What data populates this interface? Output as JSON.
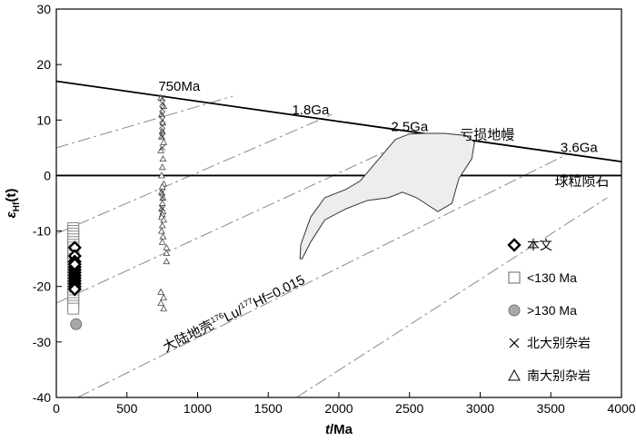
{
  "chart_data": {
    "type": "scatter",
    "xlabel": "t/Ma",
    "ylabel": "εHf(t)",
    "xlim": [
      0,
      4000
    ],
    "ylim": [
      -40,
      30
    ],
    "x_ticks": [
      0,
      500,
      1000,
      1500,
      2000,
      2500,
      3000,
      3500,
      4000
    ],
    "y_ticks": [
      -40,
      -30,
      -20,
      -10,
      0,
      10,
      20,
      30
    ],
    "grid": false,
    "legend_position": "right",
    "reference_lines": [
      {
        "name": "亏损地幔",
        "style": "solid",
        "x": [
          0,
          4000
        ],
        "y": [
          17,
          2.5
        ]
      },
      {
        "name": "球粒陨石",
        "style": "solid",
        "x": [
          0,
          4000
        ],
        "y": [
          0,
          0
        ]
      }
    ],
    "crustal_evolution_lines": [
      {
        "x": [
          0,
          1250
        ],
        "y": [
          5,
          14.3
        ]
      },
      {
        "x": [
          0,
          1950
        ],
        "y": [
          -10.5,
          11
        ]
      },
      {
        "x": [
          0,
          2600
        ],
        "y": [
          -23,
          7.5
        ]
      },
      {
        "x": [
          150,
          3620
        ],
        "y": [
          -40,
          3.9
        ]
      },
      {
        "x": [
          1700,
          3900
        ],
        "y": [
          -40,
          -4
        ]
      }
    ],
    "crustal_line_label": "大陆地壳",
    "crustal_line_ratio": "176Lu/177Hf=0.015",
    "annotations": [
      {
        "text": "750Ma",
        "x": 870,
        "y": 15.3
      },
      {
        "text": "1.8Ga",
        "x": 1800,
        "y": 11
      },
      {
        "text": "2.5Ga",
        "x": 2500,
        "y": 8
      },
      {
        "text": "3.6Ga",
        "x": 3700,
        "y": 4.2
      },
      {
        "text": "亏损地幔",
        "x": 3050,
        "y": 6.5
      },
      {
        "text": "球粒陨石",
        "x": 3720,
        "y": -1.8
      }
    ],
    "region": {
      "x": [
        1730,
        1800,
        1900,
        2050,
        2150,
        2250,
        2400,
        2500,
        2600,
        2750,
        2900,
        2960,
        2940,
        2850,
        2800,
        2700,
        2550,
        2450,
        2350,
        2200,
        2050,
        1900,
        1850,
        1800,
        1760,
        1740,
        1725
      ],
      "y": [
        -12.5,
        -7.5,
        -4,
        -2.5,
        -1,
        2,
        6.5,
        7.5,
        7.6,
        7.6,
        7.2,
        6,
        3,
        -0.5,
        -5,
        -6.5,
        -4,
        -3,
        -4,
        -4.5,
        -6,
        -8,
        -10,
        -12,
        -14,
        -15,
        -15
      ]
    },
    "series": [
      {
        "name": "本文",
        "marker": "diamond-open-bold",
        "x": [
          130,
          130,
          130,
          130,
          130,
          130,
          130,
          130,
          130,
          130,
          130,
          130,
          130
        ],
        "y": [
          -13,
          -14.5,
          -15.5,
          -16.5,
          -17,
          -17.5,
          -18,
          -18.5,
          -19,
          -19.5,
          -20,
          -20.5,
          -16
        ]
      },
      {
        "name": "<130 Ma",
        "marker": "square-open",
        "x": [
          120,
          120,
          120,
          120,
          120,
          120,
          120,
          120,
          120,
          120,
          120,
          120,
          120,
          120,
          120,
          120,
          120,
          120,
          120,
          120,
          120,
          120,
          120,
          120,
          120,
          120,
          120,
          120,
          120,
          120
        ],
        "y": [
          -9.5,
          -10,
          -10.5,
          -11,
          -11.5,
          -12,
          -12.5,
          -13,
          -13.5,
          -14,
          -14.5,
          -15,
          -15.5,
          -16,
          -16.5,
          -17,
          -17.5,
          -18,
          -18.5,
          -19,
          -19.5,
          -20,
          -20.5,
          -21,
          -21.5,
          -22,
          -22.5,
          -23,
          -23.5,
          -24
        ]
      },
      {
        "name": ">130 Ma",
        "marker": "circle-filled-gray",
        "x": [
          140
        ],
        "y": [
          -26.8
        ]
      },
      {
        "name": "北大别杂岩",
        "marker": "x",
        "x": [
          750,
          750,
          750,
          750,
          750,
          750,
          750,
          750,
          750,
          750,
          750,
          750
        ],
        "y": [
          14,
          13,
          12,
          11,
          10,
          9,
          8,
          7,
          5,
          -3,
          -4,
          -6
        ]
      },
      {
        "name": "南大别杂岩",
        "marker": "triangle-open",
        "x": [
          740,
          760,
          745,
          755,
          750,
          745,
          760,
          740,
          755,
          750,
          745,
          760,
          750,
          745,
          755,
          750,
          745,
          755,
          750,
          745,
          760,
          750,
          745,
          755,
          750,
          780,
          780,
          780,
          740,
          760,
          740,
          760
        ],
        "y": [
          14,
          12.5,
          11,
          9.5,
          8,
          7,
          6,
          4.5,
          3,
          1.5,
          0,
          -1.5,
          -2,
          -3,
          -4,
          -5,
          -6,
          -6.5,
          -7,
          -7.5,
          -8,
          -9,
          -10,
          -11,
          -12,
          -13,
          -14,
          -15.5,
          -21,
          -22,
          -23,
          -24
        ]
      }
    ]
  }
}
